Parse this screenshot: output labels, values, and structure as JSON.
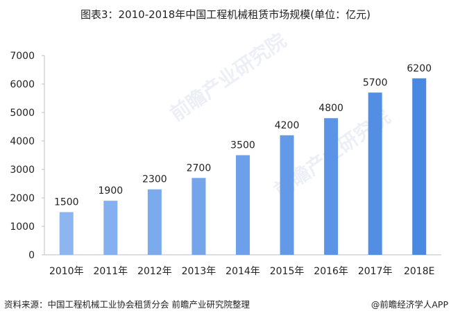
{
  "chart_data": {
    "type": "bar",
    "title": "图表3：2010-2018年中国工程机械租赁市场规模(单位：亿元)",
    "categories": [
      "2010年",
      "2011年",
      "2012年",
      "2013年",
      "2014年",
      "2015年",
      "2016年",
      "2017年",
      "2018E"
    ],
    "values": [
      1500,
      1900,
      2300,
      2700,
      3500,
      4200,
      4800,
      5700,
      6200
    ],
    "data_labels": [
      "1500",
      "1900",
      "2300",
      "2700",
      "3500",
      "4200",
      "4800",
      "5700",
      "6200"
    ],
    "ylim": [
      0,
      7000
    ],
    "yticks": [
      0,
      1000,
      2000,
      3000,
      4000,
      5000,
      6000,
      7000
    ],
    "ytick_labels": [
      "0",
      "1000",
      "2000",
      "3000",
      "4000",
      "5000",
      "6000",
      "7000"
    ],
    "xlabel": "",
    "ylabel": "",
    "grid": false,
    "legend": "none",
    "colors": {
      "start": "#8db6f1",
      "end": "#4a89e2",
      "axis": "#bfbfbf"
    }
  },
  "footer": {
    "source": "资料来源：中国工程机械工业协会租赁分会 前瞻产业研究院整理",
    "credit": "@前瞻经济学人APP"
  },
  "watermark": "前瞻产业研究院"
}
